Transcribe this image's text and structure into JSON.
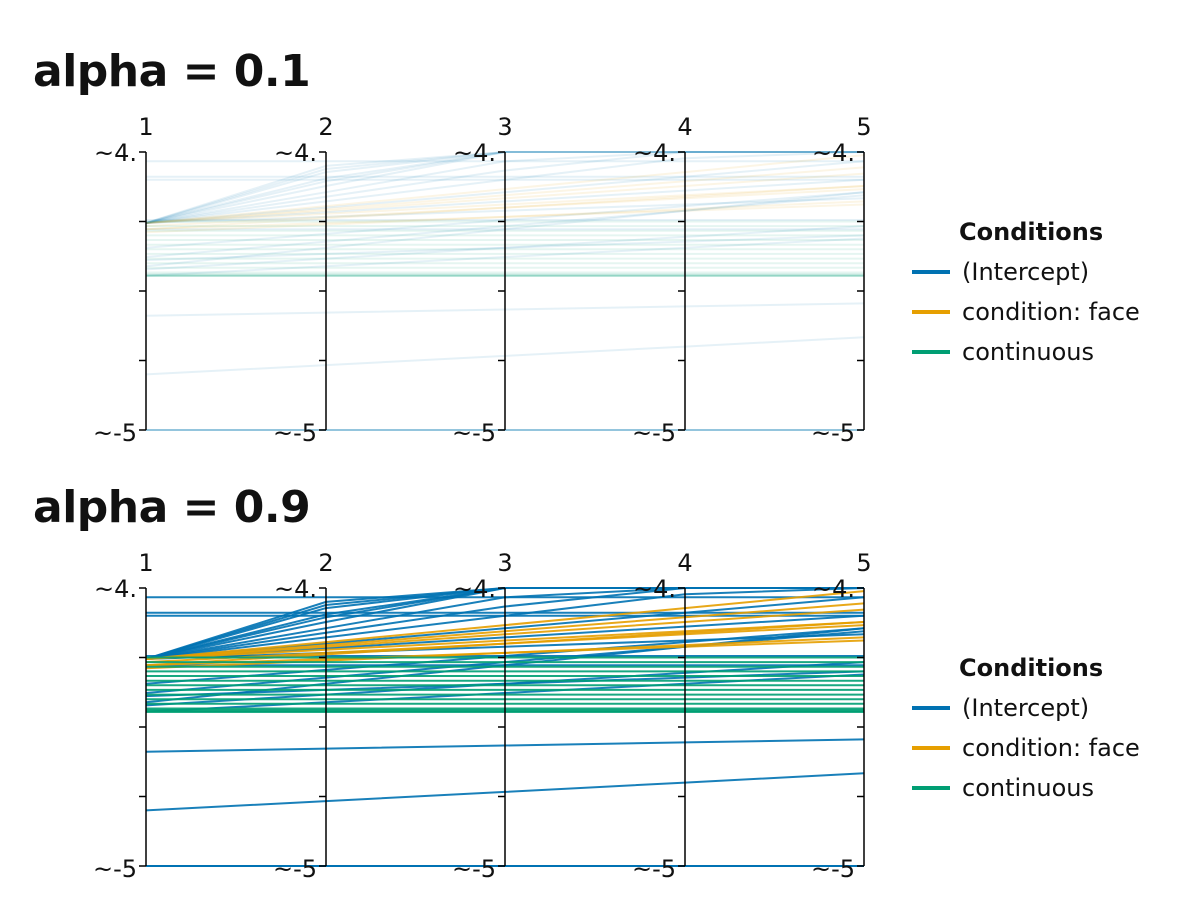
{
  "legend": {
    "title": "Conditions",
    "entries": [
      {
        "label": "(Intercept)",
        "color": "#0072B2"
      },
      {
        "label": "condition: face",
        "color": "#E69F00"
      },
      {
        "label": "continuous",
        "color": "#009E73"
      }
    ]
  },
  "chart_data": [
    {
      "type": "parallel_coordinates",
      "title": "alpha = 0.1",
      "alpha": 0.1,
      "axes": [
        "1",
        "2",
        "3",
        "4",
        "5"
      ],
      "axis_top_label": "~4.",
      "axis_bottom_label": "~-5",
      "ylim": [
        -5,
        4
      ],
      "series": [
        {
          "name": "(Intercept)",
          "color": "#0072B2",
          "lines": [
            [
              3.7,
              3.7,
              3.7,
              3.7,
              3.7
            ],
            [
              3.2,
              3.2,
              3.2,
              3.2,
              3.2
            ],
            [
              3.1,
              3.1,
              3.1,
              3.1,
              3.1
            ],
            [
              1.8,
              1.8,
              1.8,
              1.8,
              1.8
            ],
            [
              1.5,
              1.5,
              1.5,
              1.5,
              1.5
            ],
            [
              -1.3,
              -1.2,
              -1.1,
              -1.0,
              -0.9
            ],
            [
              -3.2,
              -2.9,
              -2.6,
              -2.3,
              -2.0
            ],
            [
              -5.4,
              -5.3,
              -5.2,
              -5.1,
              -5.0
            ],
            [
              -6.5,
              -6.4,
              -6.3,
              -6.2,
              -6.2
            ],
            [
              -7.3,
              -7.25,
              -7.2,
              -7.15,
              -7.1
            ],
            [
              -7.9,
              -7.9,
              -7.9,
              -7.9,
              -7.9
            ],
            [
              -8.6,
              -8.6,
              -8.6,
              -8.6,
              -8.6
            ],
            [
              1.7,
              3.55,
              5.4,
              7.25,
              9.1
            ],
            [
              1.7,
              3.45,
              5.2,
              6.95,
              8.7
            ],
            [
              1.7,
              3.35,
              5.0,
              6.65,
              8.3
            ],
            [
              1.7,
              3.15,
              4.6,
              6.05,
              7.5
            ],
            [
              1.7,
              3.05,
              4.4,
              5.75,
              7.1
            ],
            [
              1.7,
              2.9,
              4.1,
              5.3,
              6.5
            ],
            [
              1.7,
              2.7,
              3.7,
              4.7,
              5.7
            ],
            [
              1.7,
              2.55,
              3.4,
              4.25,
              5.1
            ],
            [
              1.7,
              2.4,
              3.1,
              3.8,
              4.5
            ],
            [
              1.7,
              2.2,
              2.7,
              3.2,
              3.7
            ],
            [
              1.7,
              2.05,
              2.4,
              2.75,
              3.1
            ],
            [
              1.7,
              1.9,
              2.1,
              2.3,
              2.5
            ],
            [
              0.3,
              0.9,
              1.5,
              2.1,
              2.7
            ],
            [
              0.6,
              1.1,
              1.6,
              2.1,
              2.6
            ],
            [
              0.9,
              1.35,
              1.8,
              2.25,
              2.7
            ],
            [
              0.2,
              0.55,
              0.9,
              1.25,
              1.6
            ],
            [
              0.0,
              0.3,
              0.6,
              0.9,
              1.2
            ],
            [
              0.5,
              0.7,
              0.9,
              1.1,
              1.3
            ]
          ]
        },
        {
          "name": "condition: face",
          "color": "#E69F00",
          "lines": [
            [
              1.7,
              2.1,
              2.5,
              2.9,
              3.3
            ],
            [
              1.7,
              2.25,
              2.8,
              3.35,
              3.9
            ],
            [
              1.7,
              2.15,
              2.6,
              3.05,
              3.5
            ],
            [
              1.7,
              2.0,
              2.3,
              2.6,
              2.9
            ],
            [
              1.5,
              1.85,
              2.2,
              2.55,
              2.9
            ],
            [
              1.4,
              1.65,
              1.9,
              2.15,
              2.4
            ],
            [
              1.6,
              1.9,
              2.2,
              2.5,
              2.8
            ],
            [
              1.5,
              1.7,
              1.9,
              2.1,
              2.3
            ]
          ]
        },
        {
          "name": "continuous",
          "color": "#009E73",
          "lines": [
            [
              1.75,
              1.75,
              1.75,
              1.75,
              1.75
            ],
            [
              1.6,
              1.6,
              1.6,
              1.6,
              1.6
            ],
            [
              1.45,
              1.45,
              1.45,
              1.45,
              1.45
            ],
            [
              1.3,
              1.3,
              1.3,
              1.3,
              1.3
            ],
            [
              1.15,
              1.15,
              1.15,
              1.15,
              1.15
            ],
            [
              1.0,
              1.0,
              1.0,
              1.0,
              1.0
            ],
            [
              0.85,
              0.85,
              0.85,
              0.85,
              0.85
            ],
            [
              0.7,
              0.7,
              0.7,
              0.7,
              0.7
            ],
            [
              0.55,
              0.55,
              0.55,
              0.55,
              0.55
            ],
            [
              0.4,
              0.4,
              0.4,
              0.4,
              0.4
            ],
            [
              0.25,
              0.25,
              0.25,
              0.25,
              0.25
            ],
            [
              0.1,
              0.1,
              0.1,
              0.1,
              0.1
            ],
            [
              0.05,
              0.05,
              0.05,
              0.05,
              0.05
            ],
            [
              0.0,
              0.0,
              0.0,
              0.0,
              0.0
            ],
            [
              0.0,
              0.0,
              0.0,
              0.0,
              0.0
            ],
            [
              0.0,
              0.0,
              0.0,
              0.0,
              0.0
            ],
            [
              0.0,
              0.0,
              0.0,
              0.0,
              0.0
            ],
            [
              0.0,
              0.0,
              0.0,
              0.0,
              0.0
            ]
          ]
        }
      ]
    },
    {
      "type": "parallel_coordinates",
      "title": "alpha = 0.9",
      "alpha": 0.9,
      "axes": [
        "1",
        "2",
        "3",
        "4",
        "5"
      ],
      "axis_top_label": "~4.",
      "axis_bottom_label": "~-5",
      "ylim": [
        -5,
        4
      ],
      "series": [
        {
          "name": "(Intercept)",
          "color": "#0072B2",
          "lines": [
            [
              3.7,
              3.7,
              3.7,
              3.7,
              3.7
            ],
            [
              3.2,
              3.2,
              3.2,
              3.2,
              3.2
            ],
            [
              3.1,
              3.1,
              3.1,
              3.1,
              3.1
            ],
            [
              1.8,
              1.8,
              1.8,
              1.8,
              1.8
            ],
            [
              1.5,
              1.5,
              1.5,
              1.5,
              1.5
            ],
            [
              -1.3,
              -1.2,
              -1.1,
              -1.0,
              -0.9
            ],
            [
              -3.2,
              -2.9,
              -2.6,
              -2.3,
              -2.0
            ],
            [
              -5.4,
              -5.3,
              -5.2,
              -5.1,
              -5.0
            ],
            [
              -6.5,
              -6.4,
              -6.3,
              -6.2,
              -6.2
            ],
            [
              -7.3,
              -7.25,
              -7.2,
              -7.15,
              -7.1
            ],
            [
              -7.9,
              -7.9,
              -7.9,
              -7.9,
              -7.9
            ],
            [
              -8.6,
              -8.6,
              -8.6,
              -8.6,
              -8.6
            ],
            [
              1.7,
              3.55,
              5.4,
              7.25,
              9.1
            ],
            [
              1.7,
              3.45,
              5.2,
              6.95,
              8.7
            ],
            [
              1.7,
              3.35,
              5.0,
              6.65,
              8.3
            ],
            [
              1.7,
              3.15,
              4.6,
              6.05,
              7.5
            ],
            [
              1.7,
              3.05,
              4.4,
              5.75,
              7.1
            ],
            [
              1.7,
              2.9,
              4.1,
              5.3,
              6.5
            ],
            [
              1.7,
              2.7,
              3.7,
              4.7,
              5.7
            ],
            [
              1.7,
              2.55,
              3.4,
              4.25,
              5.1
            ],
            [
              1.7,
              2.4,
              3.1,
              3.8,
              4.5
            ],
            [
              1.7,
              2.2,
              2.7,
              3.2,
              3.7
            ],
            [
              1.7,
              2.05,
              2.4,
              2.75,
              3.1
            ],
            [
              1.7,
              1.9,
              2.1,
              2.3,
              2.5
            ],
            [
              0.3,
              0.9,
              1.5,
              2.1,
              2.7
            ],
            [
              0.6,
              1.1,
              1.6,
              2.1,
              2.6
            ],
            [
              0.9,
              1.35,
              1.8,
              2.25,
              2.7
            ],
            [
              0.2,
              0.55,
              0.9,
              1.25,
              1.6
            ],
            [
              0.0,
              0.3,
              0.6,
              0.9,
              1.2
            ],
            [
              0.5,
              0.7,
              0.9,
              1.1,
              1.3
            ]
          ]
        },
        {
          "name": "condition: face",
          "color": "#E69F00",
          "lines": [
            [
              1.7,
              2.1,
              2.5,
              2.9,
              3.3
            ],
            [
              1.7,
              2.25,
              2.8,
              3.35,
              3.9
            ],
            [
              1.7,
              2.15,
              2.6,
              3.05,
              3.5
            ],
            [
              1.7,
              2.0,
              2.3,
              2.6,
              2.9
            ],
            [
              1.5,
              1.85,
              2.2,
              2.55,
              2.9
            ],
            [
              1.4,
              1.65,
              1.9,
              2.15,
              2.4
            ],
            [
              1.6,
              1.9,
              2.2,
              2.5,
              2.8
            ],
            [
              1.5,
              1.7,
              1.9,
              2.1,
              2.3
            ]
          ]
        },
        {
          "name": "continuous",
          "color": "#009E73",
          "lines": [
            [
              1.75,
              1.75,
              1.75,
              1.75,
              1.75
            ],
            [
              1.6,
              1.6,
              1.6,
              1.6,
              1.6
            ],
            [
              1.45,
              1.45,
              1.45,
              1.45,
              1.45
            ],
            [
              1.3,
              1.3,
              1.3,
              1.3,
              1.3
            ],
            [
              1.15,
              1.15,
              1.15,
              1.15,
              1.15
            ],
            [
              1.0,
              1.0,
              1.0,
              1.0,
              1.0
            ],
            [
              0.85,
              0.85,
              0.85,
              0.85,
              0.85
            ],
            [
              0.7,
              0.7,
              0.7,
              0.7,
              0.7
            ],
            [
              0.55,
              0.55,
              0.55,
              0.55,
              0.55
            ],
            [
              0.4,
              0.4,
              0.4,
              0.4,
              0.4
            ],
            [
              0.25,
              0.25,
              0.25,
              0.25,
              0.25
            ],
            [
              0.1,
              0.1,
              0.1,
              0.1,
              0.1
            ],
            [
              0.05,
              0.05,
              0.05,
              0.05,
              0.05
            ],
            [
              0.0,
              0.0,
              0.0,
              0.0,
              0.0
            ],
            [
              0.0,
              0.0,
              0.0,
              0.0,
              0.0
            ],
            [
              0.0,
              0.0,
              0.0,
              0.0,
              0.0
            ],
            [
              0.0,
              0.0,
              0.0,
              0.0,
              0.0
            ],
            [
              0.0,
              0.0,
              0.0,
              0.0,
              0.0
            ]
          ]
        }
      ]
    }
  ]
}
